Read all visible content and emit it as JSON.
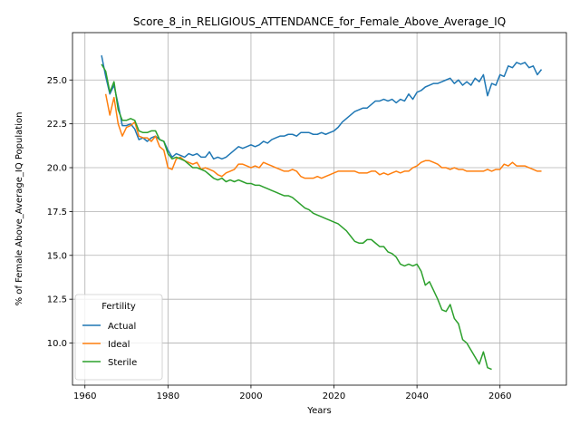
{
  "chart_data": {
    "type": "line",
    "title": "Score_8_in_RELIGIOUS_ATTENDANCE_for_Female_Above_Average_IQ",
    "xlabel": "Years",
    "ylabel": "% of Female Above_Average_IQ Population",
    "xlim": [
      1957,
      2076
    ],
    "ylim": [
      7.6,
      27.7
    ],
    "x_ticks": [
      1960,
      1980,
      2000,
      2020,
      2040,
      2060
    ],
    "x_tick_labels": [
      "1960",
      "1980",
      "2000",
      "2020",
      "2040",
      "2060"
    ],
    "y_ticks": [
      10.0,
      12.5,
      15.0,
      17.5,
      20.0,
      22.5,
      25.0
    ],
    "y_tick_labels": [
      "10.0",
      "12.5",
      "15.0",
      "17.5",
      "20.0",
      "22.5",
      "25.0"
    ],
    "grid": true,
    "legend": {
      "title": "Fertility",
      "placement": "lower-left"
    },
    "series": [
      {
        "name": "Actual",
        "color": "#1f77b4",
        "x": [
          1964,
          1965,
          1966,
          1967,
          1968,
          1969,
          1970,
          1971,
          1972,
          1973,
          1974,
          1975,
          1976,
          1977,
          1978,
          1979,
          1980,
          1981,
          1982,
          1983,
          1984,
          1985,
          1986,
          1987,
          1988,
          1989,
          1990,
          1991,
          1992,
          1993,
          1994,
          1995,
          1996,
          1997,
          1998,
          1999,
          2000,
          2001,
          2002,
          2003,
          2004,
          2005,
          2006,
          2007,
          2008,
          2009,
          2010,
          2011,
          2012,
          2013,
          2014,
          2015,
          2016,
          2017,
          2018,
          2019,
          2020,
          2021,
          2022,
          2023,
          2024,
          2025,
          2026,
          2027,
          2028,
          2029,
          2030,
          2031,
          2032,
          2033,
          2034,
          2035,
          2036,
          2037,
          2038,
          2039,
          2040,
          2041,
          2042,
          2043,
          2044,
          2045,
          2046,
          2047,
          2048,
          2049,
          2050,
          2051,
          2052,
          2053,
          2054,
          2055,
          2056,
          2057,
          2058,
          2059,
          2060,
          2061,
          2062,
          2063,
          2064,
          2065,
          2066,
          2067,
          2068,
          2069,
          2070
        ],
        "y": [
          26.4,
          25.2,
          24.2,
          24.7,
          23.6,
          22.4,
          22.4,
          22.5,
          22.2,
          21.6,
          21.7,
          21.5,
          21.7,
          21.8,
          21.6,
          21.5,
          21.0,
          20.6,
          20.8,
          20.7,
          20.6,
          20.8,
          20.7,
          20.8,
          20.6,
          20.6,
          20.9,
          20.5,
          20.6,
          20.5,
          20.6,
          20.8,
          21.0,
          21.2,
          21.1,
          21.2,
          21.3,
          21.2,
          21.3,
          21.5,
          21.4,
          21.6,
          21.7,
          21.8,
          21.8,
          21.9,
          21.9,
          21.8,
          22.0,
          22.0,
          22.0,
          21.9,
          21.9,
          22.0,
          21.9,
          22.0,
          22.1,
          22.3,
          22.6,
          22.8,
          23.0,
          23.2,
          23.3,
          23.4,
          23.4,
          23.6,
          23.8,
          23.8,
          23.9,
          23.8,
          23.9,
          23.7,
          23.9,
          23.8,
          24.2,
          23.9,
          24.3,
          24.4,
          24.6,
          24.7,
          24.8,
          24.8,
          24.9,
          25.0,
          25.1,
          24.8,
          25.0,
          24.7,
          24.9,
          24.7,
          25.1,
          24.9,
          25.3,
          24.1,
          24.8,
          24.7,
          25.3,
          25.2,
          25.8,
          25.7,
          26.0,
          25.9,
          26.0,
          25.7,
          25.8,
          25.3,
          25.6
        ]
      },
      {
        "name": "Ideal",
        "color": "#ff7f0e",
        "x": [
          1965,
          1966,
          1967,
          1968,
          1969,
          1970,
          1971,
          1972,
          1973,
          1974,
          1975,
          1976,
          1977,
          1978,
          1979,
          1980,
          1981,
          1982,
          1983,
          1984,
          1985,
          1986,
          1987,
          1988,
          1989,
          1990,
          1991,
          1992,
          1993,
          1994,
          1995,
          1996,
          1997,
          1998,
          1999,
          2000,
          2001,
          2002,
          2003,
          2004,
          2005,
          2006,
          2007,
          2008,
          2009,
          2010,
          2011,
          2012,
          2013,
          2014,
          2015,
          2016,
          2017,
          2018,
          2019,
          2020,
          2021,
          2022,
          2023,
          2024,
          2025,
          2026,
          2027,
          2028,
          2029,
          2030,
          2031,
          2032,
          2033,
          2034,
          2035,
          2036,
          2037,
          2038,
          2039,
          2040,
          2041,
          2042,
          2043,
          2044,
          2045,
          2046,
          2047,
          2048,
          2049,
          2050,
          2051,
          2052,
          2053,
          2054,
          2055,
          2056,
          2057,
          2058,
          2059,
          2060,
          2061,
          2062,
          2063,
          2064,
          2065,
          2066,
          2067,
          2068,
          2069,
          2070
        ],
        "y": [
          24.2,
          23.0,
          24.0,
          22.5,
          21.8,
          22.3,
          22.4,
          22.6,
          21.8,
          21.7,
          21.7,
          21.5,
          21.8,
          21.2,
          21.0,
          20.0,
          19.9,
          20.5,
          20.6,
          20.4,
          20.3,
          20.2,
          20.3,
          19.9,
          20.0,
          19.9,
          19.8,
          19.6,
          19.5,
          19.7,
          19.8,
          19.9,
          20.2,
          20.2,
          20.1,
          20.0,
          20.1,
          20.0,
          20.3,
          20.2,
          20.1,
          20.0,
          19.9,
          19.8,
          19.8,
          19.9,
          19.8,
          19.5,
          19.4,
          19.4,
          19.4,
          19.5,
          19.4,
          19.5,
          19.6,
          19.7,
          19.8,
          19.8,
          19.8,
          19.8,
          19.8,
          19.7,
          19.7,
          19.7,
          19.8,
          19.8,
          19.6,
          19.7,
          19.6,
          19.7,
          19.8,
          19.7,
          19.8,
          19.8,
          20.0,
          20.1,
          20.3,
          20.4,
          20.4,
          20.3,
          20.2,
          20.0,
          20.0,
          19.9,
          20.0,
          19.9,
          19.9,
          19.8,
          19.8,
          19.8,
          19.8,
          19.8,
          19.9,
          19.8,
          19.9,
          19.9,
          20.2,
          20.1,
          20.3,
          20.1,
          20.1,
          20.1,
          20.0,
          19.9,
          19.8,
          19.8
        ]
      },
      {
        "name": "Sterile",
        "color": "#2ca02c",
        "x": [
          1964,
          1965,
          1966,
          1967,
          1968,
          1969,
          1970,
          1971,
          1972,
          1973,
          1974,
          1975,
          1976,
          1977,
          1978,
          1979,
          1980,
          1981,
          1982,
          1983,
          1984,
          1985,
          1986,
          1987,
          1988,
          1989,
          1990,
          1991,
          1992,
          1993,
          1994,
          1995,
          1996,
          1997,
          1998,
          1999,
          2000,
          2001,
          2002,
          2003,
          2004,
          2005,
          2006,
          2007,
          2008,
          2009,
          2010,
          2011,
          2012,
          2013,
          2014,
          2015,
          2016,
          2017,
          2018,
          2019,
          2020,
          2021,
          2022,
          2023,
          2024,
          2025,
          2026,
          2027,
          2028,
          2029,
          2030,
          2031,
          2032,
          2033,
          2034,
          2035,
          2036,
          2037,
          2038,
          2039,
          2040,
          2041,
          2042,
          2043,
          2044,
          2045,
          2046,
          2047,
          2048,
          2049,
          2050,
          2051,
          2052,
          2053,
          2054,
          2055,
          2056,
          2057,
          2058
        ],
        "y": [
          25.9,
          25.5,
          24.3,
          24.9,
          23.3,
          22.7,
          22.7,
          22.8,
          22.7,
          22.1,
          22.0,
          22.0,
          22.1,
          22.1,
          21.6,
          21.5,
          20.8,
          20.5,
          20.6,
          20.5,
          20.4,
          20.2,
          20.0,
          20.0,
          19.9,
          19.8,
          19.6,
          19.4,
          19.3,
          19.4,
          19.2,
          19.3,
          19.2,
          19.3,
          19.2,
          19.1,
          19.1,
          19.0,
          19.0,
          18.9,
          18.8,
          18.7,
          18.6,
          18.5,
          18.4,
          18.4,
          18.3,
          18.1,
          17.9,
          17.7,
          17.6,
          17.4,
          17.3,
          17.2,
          17.1,
          17.0,
          16.9,
          16.8,
          16.6,
          16.4,
          16.1,
          15.8,
          15.7,
          15.7,
          15.9,
          15.9,
          15.7,
          15.5,
          15.5,
          15.2,
          15.1,
          14.9,
          14.5,
          14.4,
          14.5,
          14.4,
          14.5,
          14.1,
          13.3,
          13.5,
          13.0,
          12.5,
          11.9,
          11.8,
          12.2,
          11.4,
          11.1,
          10.2,
          10.0,
          9.6,
          9.2,
          8.8,
          9.5,
          8.6,
          8.5
        ]
      }
    ]
  }
}
